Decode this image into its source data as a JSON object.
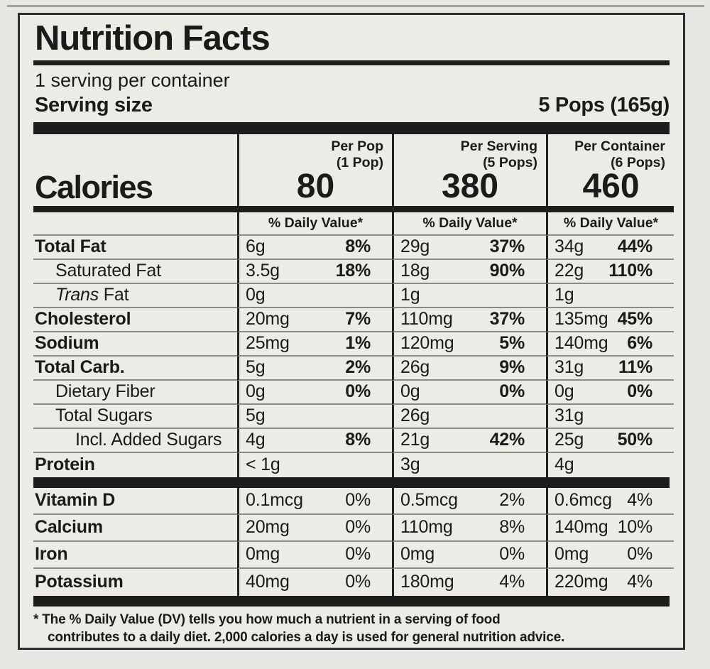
{
  "label": {
    "title": "Nutrition Facts",
    "servings_per_container": "1 serving per container",
    "serving_size_label": "Serving size",
    "serving_size_value": "5 Pops (165g)",
    "calories_label": "Calories",
    "daily_value_header": "% Daily Value*",
    "columns": [
      {
        "name": "Per Pop",
        "sub": "(1 Pop)",
        "calories": "80"
      },
      {
        "name": "Per Serving",
        "sub": "(5 Pops)",
        "calories": "380"
      },
      {
        "name": "Per Container",
        "sub": "(6 Pops)",
        "calories": "460"
      }
    ],
    "rows": [
      {
        "name": "Total Fat",
        "bold": true,
        "indent": 0,
        "cols": [
          {
            "amt": "6g",
            "pct": "8%"
          },
          {
            "amt": "29g",
            "pct": "37%"
          },
          {
            "amt": "34g",
            "pct": "44%"
          }
        ]
      },
      {
        "name": "Saturated Fat",
        "indent": 1,
        "cols": [
          {
            "amt": "3.5g",
            "pct": "18%"
          },
          {
            "amt": "18g",
            "pct": "90%"
          },
          {
            "amt": "22g",
            "pct": "110%"
          }
        ]
      },
      {
        "name": "Fat",
        "italic": "Trans",
        "indent": 1,
        "cols": [
          {
            "amt": "0g"
          },
          {
            "amt": "1g"
          },
          {
            "amt": "1g"
          }
        ]
      },
      {
        "name": "Cholesterol",
        "bold": true,
        "indent": 0,
        "cols": [
          {
            "amt": "20mg",
            "pct": "7%"
          },
          {
            "amt": "110mg",
            "pct": "37%"
          },
          {
            "amt": "135mg",
            "pct": "45%"
          }
        ]
      },
      {
        "name": "Sodium",
        "bold": true,
        "indent": 0,
        "cols": [
          {
            "amt": "25mg",
            "pct": "1%"
          },
          {
            "amt": "120mg",
            "pct": "5%"
          },
          {
            "amt": "140mg",
            "pct": "6%"
          }
        ]
      },
      {
        "name": "Total Carb.",
        "bold": true,
        "indent": 0,
        "cols": [
          {
            "amt": "5g",
            "pct": "2%"
          },
          {
            "amt": "26g",
            "pct": "9%"
          },
          {
            "amt": "31g",
            "pct": "11%"
          }
        ]
      },
      {
        "name": "Dietary Fiber",
        "indent": 1,
        "cols": [
          {
            "amt": "0g",
            "pct": "0%"
          },
          {
            "amt": "0g",
            "pct": "0%"
          },
          {
            "amt": "0g",
            "pct": "0%"
          }
        ]
      },
      {
        "name": "Total Sugars",
        "indent": 1,
        "cols": [
          {
            "amt": "5g"
          },
          {
            "amt": "26g"
          },
          {
            "amt": "31g"
          }
        ]
      },
      {
        "name": "Incl. Added Sugars",
        "indent": 2,
        "cols": [
          {
            "amt": "4g",
            "pct": "8%"
          },
          {
            "amt": "21g",
            "pct": "42%"
          },
          {
            "amt": "25g",
            "pct": "50%"
          }
        ]
      },
      {
        "name": "Protein",
        "bold": true,
        "indent": 0,
        "cols": [
          {
            "amt": "< 1g"
          },
          {
            "amt": "3g"
          },
          {
            "amt": "4g"
          }
        ]
      }
    ],
    "vitamin_rows": [
      {
        "name": "Vitamin D",
        "bold": true,
        "indent": 0,
        "cols": [
          {
            "amt": "0.1mcg",
            "pct": "0%"
          },
          {
            "amt": "0.5mcg",
            "pct": "2%"
          },
          {
            "amt": "0.6mcg",
            "pct": "4%"
          }
        ]
      },
      {
        "name": "Calcium",
        "bold": true,
        "indent": 0,
        "cols": [
          {
            "amt": "20mg",
            "pct": "0%"
          },
          {
            "amt": "110mg",
            "pct": "8%"
          },
          {
            "amt": "140mg",
            "pct": "10%"
          }
        ]
      },
      {
        "name": "Iron",
        "bold": true,
        "indent": 0,
        "cols": [
          {
            "amt": "0mg",
            "pct": "0%"
          },
          {
            "amt": "0mg",
            "pct": "0%"
          },
          {
            "amt": "0mg",
            "pct": "0%"
          }
        ]
      },
      {
        "name": "Potassium",
        "bold": true,
        "indent": 0,
        "cols": [
          {
            "amt": "40mg",
            "pct": "0%"
          },
          {
            "amt": "180mg",
            "pct": "4%"
          },
          {
            "amt": "220mg",
            "pct": "4%"
          }
        ]
      }
    ],
    "footnote_line1": "* The % Daily Value (DV) tells you how much a nutrient in a serving of food",
    "footnote_line2": "contributes to a daily diet. 2,000 calories a day is used for general nutrition advice."
  }
}
